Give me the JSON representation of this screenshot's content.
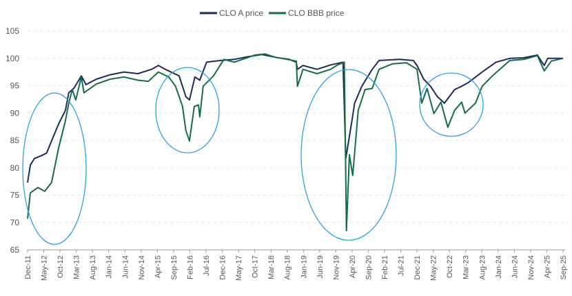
{
  "chart_data": {
    "type": "line",
    "title": "",
    "xlabel": "",
    "ylabel": "",
    "ylim": [
      65,
      105
    ],
    "yticks": [
      65,
      70,
      75,
      80,
      85,
      90,
      95,
      100,
      105
    ],
    "xlim": [
      "2011-12-01",
      "2025-09-01"
    ],
    "xtick_labels": [
      "Dec-11",
      "May-12",
      "Oct-12",
      "Mar-13",
      "Aug-13",
      "Jan-14",
      "Jun-14",
      "Nov-14",
      "Apr-15",
      "Sep-15",
      "Feb-16",
      "Jul-16",
      "Dec-16",
      "May-17",
      "Oct-17",
      "Mar-18",
      "Aug-18",
      "Jan-19",
      "Jun-19",
      "Nov-19",
      "Apr-20",
      "Sep-20",
      "Feb-21",
      "Jul-21",
      "Dec-21",
      "May-22",
      "Oct-22",
      "Mar-23",
      "Aug-23",
      "Jan-24",
      "Jun-24",
      "Nov-24",
      "Apr-25",
      "Sep-25"
    ],
    "grid": "horizontal dashed",
    "legend_position": "top-center",
    "annotation_color": "#29a3dc",
    "series": [
      {
        "name": "CLO A price",
        "color": "#1b2a5a",
        "points": [
          [
            "2011-12-01",
            77.3
          ],
          [
            "2011-12-27",
            80.5
          ],
          [
            "2012-02-05",
            81.7
          ],
          [
            "2012-04-06",
            82.2
          ],
          [
            "2012-05-28",
            82.7
          ],
          [
            "2012-07-13",
            84.9
          ],
          [
            "2012-09-18",
            88.0
          ],
          [
            "2012-11-21",
            90.5
          ],
          [
            "2012-12-22",
            93.7
          ],
          [
            "2013-02-12",
            94.6
          ],
          [
            "2013-04-18",
            96.8
          ],
          [
            "2013-06-01",
            95.2
          ],
          [
            "2013-09-07",
            96.2
          ],
          [
            "2014-01-15",
            97.0
          ],
          [
            "2014-05-22",
            97.5
          ],
          [
            "2014-10-01",
            97.2
          ],
          [
            "2015-02-07",
            98.0
          ],
          [
            "2015-04-10",
            98.7
          ],
          [
            "2015-06-15",
            98.0
          ],
          [
            "2015-10-22",
            96.8
          ],
          [
            "2015-12-25",
            93.0
          ],
          [
            "2016-01-28",
            92.4
          ],
          [
            "2016-03-18",
            96.6
          ],
          [
            "2016-05-03",
            96.0
          ],
          [
            "2016-07-06",
            99.3
          ],
          [
            "2016-11-13",
            99.6
          ],
          [
            "2017-03-22",
            99.8
          ],
          [
            "2017-07-28",
            100.3
          ],
          [
            "2017-12-06",
            100.7
          ],
          [
            "2018-04-13",
            100.2
          ],
          [
            "2018-08-21",
            99.8
          ],
          [
            "2018-10-25",
            99.3
          ],
          [
            "2018-11-06",
            98.0
          ],
          [
            "2018-12-28",
            98.7
          ],
          [
            "2019-05-06",
            98.0
          ],
          [
            "2019-09-13",
            98.8
          ],
          [
            "2020-01-07",
            99.3
          ],
          [
            "2020-02-03",
            81.7
          ],
          [
            "2020-03-25",
            88.0
          ],
          [
            "2020-04-25",
            91.8
          ],
          [
            "2020-07-01",
            94.9
          ],
          [
            "2020-10-07",
            98.0
          ],
          [
            "2020-12-10",
            99.6
          ],
          [
            "2021-06-19",
            99.8
          ],
          [
            "2021-10-28",
            99.6
          ],
          [
            "2021-12-01",
            98.7
          ],
          [
            "2022-02-03",
            96.2
          ],
          [
            "2022-04-06",
            94.9
          ],
          [
            "2022-06-10",
            93.0
          ],
          [
            "2022-08-15",
            91.8
          ],
          [
            "2022-11-19",
            94.3
          ],
          [
            "2023-01-24",
            94.9
          ],
          [
            "2023-03-28",
            95.6
          ],
          [
            "2023-08-04",
            97.5
          ],
          [
            "2023-12-12",
            99.3
          ],
          [
            "2024-04-19",
            100.0
          ],
          [
            "2024-08-27",
            100.1
          ],
          [
            "2025-01-04",
            100.6
          ],
          [
            "2025-03-07",
            98.7
          ],
          [
            "2025-04-09",
            100.0
          ],
          [
            "2025-09-01",
            100.0
          ]
        ]
      },
      {
        "name": "CLO BBB price",
        "color": "#136b4a",
        "points": [
          [
            "2011-12-01",
            70.7
          ],
          [
            "2011-12-27",
            75.4
          ],
          [
            "2012-03-06",
            76.4
          ],
          [
            "2012-05-10",
            75.7
          ],
          [
            "2012-07-13",
            77.3
          ],
          [
            "2012-09-18",
            83.6
          ],
          [
            "2012-11-21",
            88.6
          ],
          [
            "2012-12-22",
            91.8
          ],
          [
            "2013-01-25",
            94.3
          ],
          [
            "2013-02-27",
            92.4
          ],
          [
            "2013-04-18",
            96.6
          ],
          [
            "2013-05-12",
            93.7
          ],
          [
            "2013-09-07",
            95.3
          ],
          [
            "2014-01-15",
            96.2
          ],
          [
            "2014-05-22",
            96.6
          ],
          [
            "2014-10-01",
            96.0
          ],
          [
            "2015-01-07",
            95.8
          ],
          [
            "2015-04-10",
            97.5
          ],
          [
            "2015-07-16",
            96.6
          ],
          [
            "2015-09-19",
            94.9
          ],
          [
            "2015-11-24",
            91.2
          ],
          [
            "2015-12-25",
            86.8
          ],
          [
            "2016-01-28",
            84.9
          ],
          [
            "2016-03-12",
            91.2
          ],
          [
            "2016-04-21",
            91.5
          ],
          [
            "2016-05-03",
            89.3
          ],
          [
            "2016-06-04",
            94.9
          ],
          [
            "2016-09-10",
            96.8
          ],
          [
            "2016-12-16",
            99.8
          ],
          [
            "2017-03-22",
            99.3
          ],
          [
            "2017-10-03",
            100.6
          ],
          [
            "2018-01-07",
            100.8
          ],
          [
            "2018-04-13",
            100.2
          ],
          [
            "2018-10-25",
            99.5
          ],
          [
            "2018-11-06",
            94.9
          ],
          [
            "2018-12-28",
            98.0
          ],
          [
            "2019-05-06",
            97.2
          ],
          [
            "2019-09-13",
            98.0
          ],
          [
            "2019-11-16",
            98.8
          ],
          [
            "2020-01-19",
            99.3
          ],
          [
            "2020-02-09",
            68.5
          ],
          [
            "2020-03-06",
            82.4
          ],
          [
            "2020-04-07",
            78.6
          ],
          [
            "2020-05-28",
            90.5
          ],
          [
            "2020-08-01",
            94.3
          ],
          [
            "2020-10-07",
            94.5
          ],
          [
            "2020-12-10",
            98.0
          ],
          [
            "2021-04-16",
            99.0
          ],
          [
            "2021-08-24",
            99.2
          ],
          [
            "2021-12-01",
            98.0
          ],
          [
            "2022-01-15",
            91.8
          ],
          [
            "2022-03-04",
            94.5
          ],
          [
            "2022-05-07",
            89.9
          ],
          [
            "2022-07-12",
            92.0
          ],
          [
            "2022-09-16",
            87.4
          ],
          [
            "2022-11-19",
            90.5
          ],
          [
            "2023-01-24",
            92.0
          ],
          [
            "2023-02-25",
            90.0
          ],
          [
            "2023-06-01",
            91.8
          ],
          [
            "2023-08-04",
            94.9
          ],
          [
            "2023-11-08",
            96.8
          ],
          [
            "2024-04-19",
            99.6
          ],
          [
            "2024-08-27",
            99.8
          ],
          [
            "2025-01-04",
            100.5
          ],
          [
            "2025-03-07",
            97.7
          ],
          [
            "2025-05-13",
            99.5
          ],
          [
            "2025-09-01",
            100.0
          ]
        ]
      }
    ]
  }
}
